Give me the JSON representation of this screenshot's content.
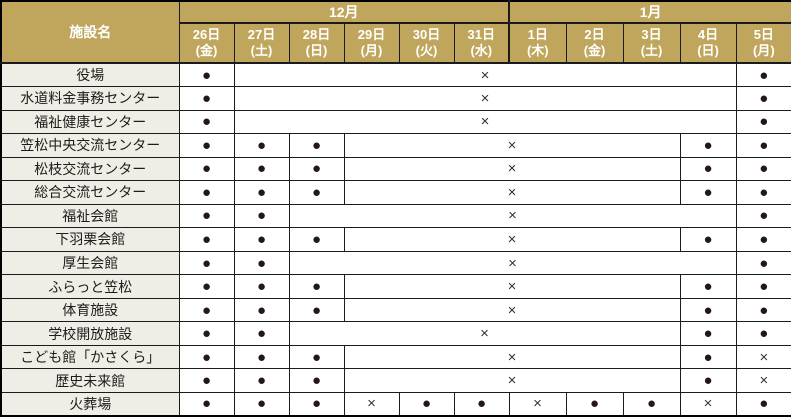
{
  "table": {
    "facility_header": "施設名",
    "months": [
      {
        "label": "12月",
        "span": 6
      },
      {
        "label": "1月",
        "span": 5
      }
    ],
    "dates": [
      {
        "day": "26日",
        "dow": "(金)"
      },
      {
        "day": "27日",
        "dow": "(土)"
      },
      {
        "day": "28日",
        "dow": "(日)"
      },
      {
        "day": "29日",
        "dow": "(月)"
      },
      {
        "day": "30日",
        "dow": "(火)"
      },
      {
        "day": "31日",
        "dow": "(水)"
      },
      {
        "day": "1日",
        "dow": "(木)"
      },
      {
        "day": "2日",
        "dow": "(金)"
      },
      {
        "day": "3日",
        "dow": "(土)"
      },
      {
        "day": "4日",
        "dow": "(日)"
      },
      {
        "day": "5日",
        "dow": "(月)"
      }
    ],
    "legend": {
      "open": "●",
      "closed": "×"
    },
    "rows": [
      {
        "name": "役場",
        "cells": [
          {
            "glyph": "●",
            "span": 1
          },
          {
            "glyph": "×",
            "span": 9
          },
          {
            "glyph": "●",
            "span": 1
          }
        ]
      },
      {
        "name": "水道料金事務センター",
        "cells": [
          {
            "glyph": "●",
            "span": 1
          },
          {
            "glyph": "×",
            "span": 9
          },
          {
            "glyph": "●",
            "span": 1
          }
        ]
      },
      {
        "name": "福祉健康センター",
        "cells": [
          {
            "glyph": "●",
            "span": 1
          },
          {
            "glyph": "×",
            "span": 9
          },
          {
            "glyph": "●",
            "span": 1
          }
        ]
      },
      {
        "name": "笠松中央交流センター",
        "cells": [
          {
            "glyph": "●",
            "span": 1
          },
          {
            "glyph": "●",
            "span": 1
          },
          {
            "glyph": "●",
            "span": 1
          },
          {
            "glyph": "×",
            "span": 6
          },
          {
            "glyph": "●",
            "span": 1
          },
          {
            "glyph": "●",
            "span": 1
          }
        ]
      },
      {
        "name": "松枝交流センター",
        "cells": [
          {
            "glyph": "●",
            "span": 1
          },
          {
            "glyph": "●",
            "span": 1
          },
          {
            "glyph": "●",
            "span": 1
          },
          {
            "glyph": "×",
            "span": 6
          },
          {
            "glyph": "●",
            "span": 1
          },
          {
            "glyph": "●",
            "span": 1
          }
        ]
      },
      {
        "name": "総合交流センター",
        "cells": [
          {
            "glyph": "●",
            "span": 1
          },
          {
            "glyph": "●",
            "span": 1
          },
          {
            "glyph": "●",
            "span": 1
          },
          {
            "glyph": "×",
            "span": 6
          },
          {
            "glyph": "●",
            "span": 1
          },
          {
            "glyph": "●",
            "span": 1
          }
        ]
      },
      {
        "name": "福祉会館",
        "cells": [
          {
            "glyph": "●",
            "span": 1
          },
          {
            "glyph": "●",
            "span": 1
          },
          {
            "glyph": "×",
            "span": 8
          },
          {
            "glyph": "●",
            "span": 1
          }
        ]
      },
      {
        "name": "下羽栗会館",
        "cells": [
          {
            "glyph": "●",
            "span": 1
          },
          {
            "glyph": "●",
            "span": 1
          },
          {
            "glyph": "●",
            "span": 1
          },
          {
            "glyph": "×",
            "span": 6
          },
          {
            "glyph": "●",
            "span": 1
          },
          {
            "glyph": "●",
            "span": 1
          }
        ]
      },
      {
        "name": "厚生会館",
        "cells": [
          {
            "glyph": "●",
            "span": 1
          },
          {
            "glyph": "●",
            "span": 1
          },
          {
            "glyph": "×",
            "span": 8
          },
          {
            "glyph": "●",
            "span": 1
          }
        ]
      },
      {
        "name": "ふらっと笠松",
        "cells": [
          {
            "glyph": "●",
            "span": 1
          },
          {
            "glyph": "●",
            "span": 1
          },
          {
            "glyph": "●",
            "span": 1
          },
          {
            "glyph": "×",
            "span": 6
          },
          {
            "glyph": "●",
            "span": 1
          },
          {
            "glyph": "●",
            "span": 1
          }
        ]
      },
      {
        "name": "体育施設",
        "cells": [
          {
            "glyph": "●",
            "span": 1
          },
          {
            "glyph": "●",
            "span": 1
          },
          {
            "glyph": "●",
            "span": 1
          },
          {
            "glyph": "×",
            "span": 6
          },
          {
            "glyph": "●",
            "span": 1
          },
          {
            "glyph": "●",
            "span": 1
          }
        ]
      },
      {
        "name": "学校開放施設",
        "cells": [
          {
            "glyph": "●",
            "span": 1
          },
          {
            "glyph": "●",
            "span": 1
          },
          {
            "glyph": "×",
            "span": 7
          },
          {
            "glyph": "●",
            "span": 1
          },
          {
            "glyph": "●",
            "span": 1
          }
        ]
      },
      {
        "name": "こども館「かさくら」",
        "cells": [
          {
            "glyph": "●",
            "span": 1
          },
          {
            "glyph": "●",
            "span": 1
          },
          {
            "glyph": "●",
            "span": 1
          },
          {
            "glyph": "×",
            "span": 6
          },
          {
            "glyph": "●",
            "span": 1
          },
          {
            "glyph": "×",
            "span": 1
          }
        ]
      },
      {
        "name": "歴史未来館",
        "cells": [
          {
            "glyph": "●",
            "span": 1
          },
          {
            "glyph": "●",
            "span": 1
          },
          {
            "glyph": "●",
            "span": 1
          },
          {
            "glyph": "×",
            "span": 6
          },
          {
            "glyph": "●",
            "span": 1
          },
          {
            "glyph": "×",
            "span": 1
          }
        ]
      },
      {
        "name": "火葬場",
        "cells": [
          {
            "glyph": "●",
            "span": 1
          },
          {
            "glyph": "●",
            "span": 1
          },
          {
            "glyph": "●",
            "span": 1
          },
          {
            "glyph": "×",
            "span": 1
          },
          {
            "glyph": "●",
            "span": 1
          },
          {
            "glyph": "●",
            "span": 1
          },
          {
            "glyph": "×",
            "span": 1
          },
          {
            "glyph": "●",
            "span": 1
          },
          {
            "glyph": "●",
            "span": 1
          },
          {
            "glyph": "×",
            "span": 1
          },
          {
            "glyph": "●",
            "span": 1
          }
        ]
      }
    ]
  },
  "colors": {
    "header_bg": "#bfa65c",
    "header_text": "#ffffff",
    "facility_bg": "#f0ede6",
    "cell_bg": "#ffffff",
    "border": "#1b1b1b",
    "open_mark": "#231815",
    "closed_mark": "#3b3331"
  }
}
